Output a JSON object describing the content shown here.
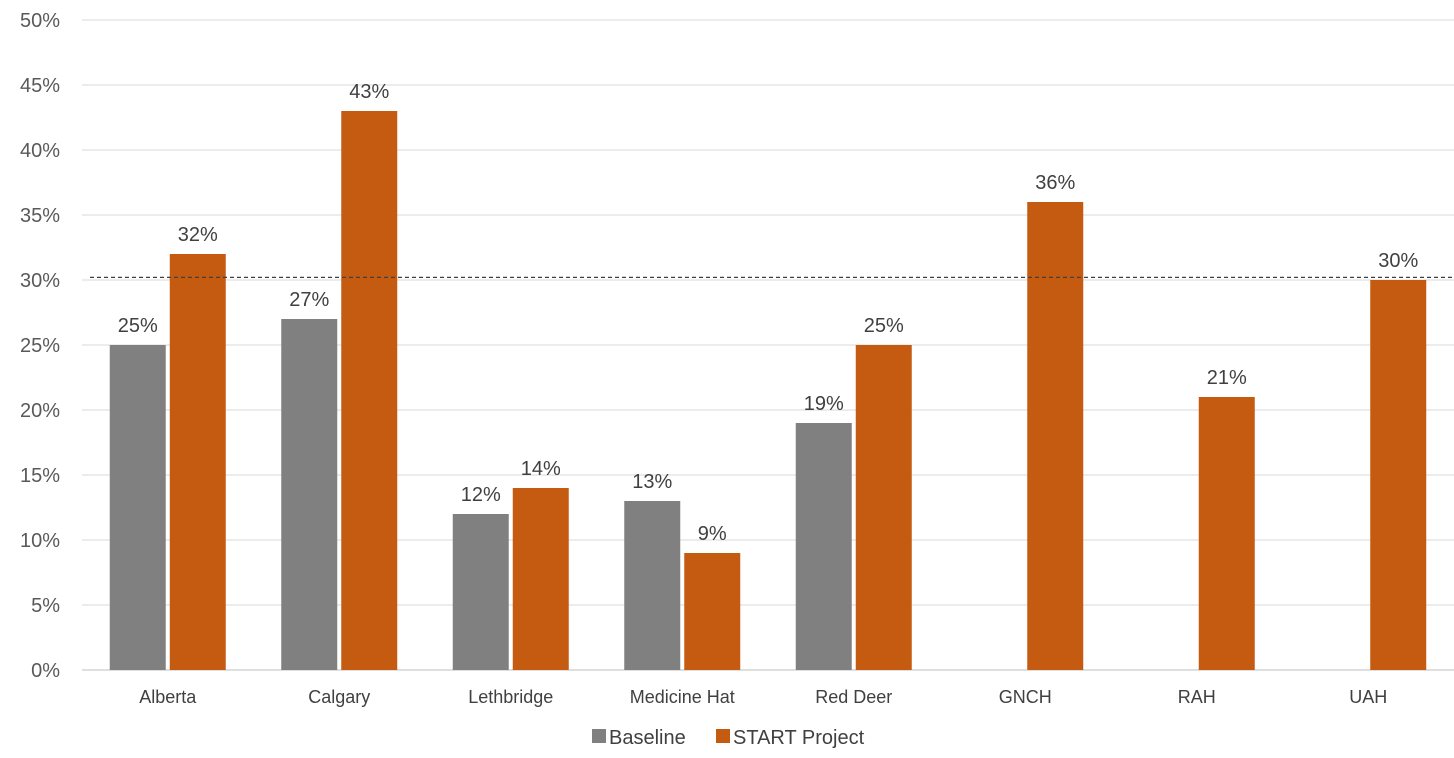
{
  "chart_data": {
    "type": "bar",
    "categories": [
      "Alberta",
      "Calgary",
      "Lethbridge",
      "Medicine Hat",
      "Red Deer",
      "GNCH",
      "RAH",
      "UAH"
    ],
    "series": [
      {
        "name": "Baseline",
        "values": [
          25,
          27,
          12,
          13,
          19,
          null,
          null,
          null
        ],
        "color": "#808080"
      },
      {
        "name": "START Project",
        "values": [
          32,
          43,
          14,
          9,
          25,
          36,
          21,
          30
        ],
        "color": "#C55A11"
      }
    ],
    "data_labels": {
      "Baseline": [
        "25%",
        "27%",
        "12%",
        "13%",
        "19%",
        null,
        null,
        null
      ],
      "START Project": [
        "32%",
        "43%",
        "14%",
        "9%",
        "25%",
        "36%",
        "21%",
        "30%"
      ]
    },
    "y_ticks": [
      "0%",
      "5%",
      "10%",
      "15%",
      "20%",
      "25%",
      "30%",
      "35%",
      "40%",
      "45%",
      "50%"
    ],
    "ylim": [
      0,
      50
    ],
    "y_step": 5,
    "reference_line": {
      "value": 30.2,
      "style": "dashed",
      "color": "#404040"
    },
    "grid": true,
    "legend_position": "bottom",
    "title": "",
    "xlabel": "",
    "ylabel": ""
  }
}
